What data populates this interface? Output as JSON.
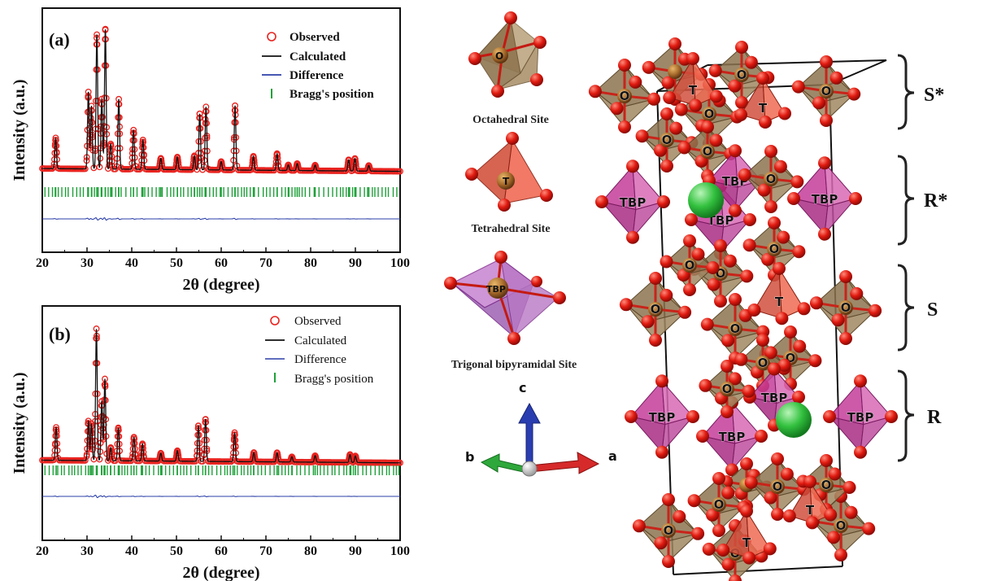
{
  "chart_data": [
    {
      "type": "line",
      "panel": "(a)",
      "xlabel": "2θ (degree)",
      "ylabel": "Intensity (a.u.)",
      "xlim": [
        20,
        100
      ],
      "xticks": [
        "20",
        "30",
        "40",
        "50",
        "60",
        "70",
        "80",
        "90",
        "100"
      ],
      "legend": {
        "position": "top-right",
        "entries": [
          "Observed",
          "Calculated",
          "Difference",
          "Bragg's position"
        ]
      },
      "colors": {
        "observed": "#e8231f",
        "calculated": "#111111",
        "difference": "#2b3fa8",
        "bragg": "#1fa03a"
      },
      "peaks": [
        {
          "x": 23.0,
          "y": 0.22
        },
        {
          "x": 30.3,
          "y": 0.55
        },
        {
          "x": 31.0,
          "y": 0.45
        },
        {
          "x": 32.2,
          "y": 0.96
        },
        {
          "x": 33.3,
          "y": 0.5
        },
        {
          "x": 34.1,
          "y": 1.0
        },
        {
          "x": 35.3,
          "y": 0.18
        },
        {
          "x": 37.1,
          "y": 0.5
        },
        {
          "x": 40.4,
          "y": 0.28
        },
        {
          "x": 42.5,
          "y": 0.21
        },
        {
          "x": 46.5,
          "y": 0.08
        },
        {
          "x": 50.2,
          "y": 0.09
        },
        {
          "x": 54.0,
          "y": 0.1
        },
        {
          "x": 55.2,
          "y": 0.4
        },
        {
          "x": 56.6,
          "y": 0.45
        },
        {
          "x": 60.0,
          "y": 0.06
        },
        {
          "x": 63.1,
          "y": 0.46
        },
        {
          "x": 67.2,
          "y": 0.1
        },
        {
          "x": 72.5,
          "y": 0.12
        },
        {
          "x": 75.0,
          "y": 0.04
        },
        {
          "x": 77.0,
          "y": 0.05
        },
        {
          "x": 81.0,
          "y": 0.04
        },
        {
          "x": 88.5,
          "y": 0.08
        },
        {
          "x": 89.9,
          "y": 0.09
        },
        {
          "x": 93.0,
          "y": 0.04
        }
      ]
    },
    {
      "type": "line",
      "panel": "(b)",
      "xlabel": "2θ (degree)",
      "ylabel": "Intensity (a.u.)",
      "xlim": [
        20,
        100
      ],
      "xticks": [
        "20",
        "30",
        "40",
        "50",
        "60",
        "70",
        "80",
        "90",
        "100"
      ],
      "legend": {
        "position": "top-right",
        "entries": [
          "Observed",
          "Calculated",
          "Difference",
          "Bragg's position"
        ]
      },
      "colors": {
        "observed": "#e8231f",
        "calculated": "#111111",
        "difference": "#2b3fa8",
        "bragg": "#1fa03a"
      },
      "peaks": [
        {
          "x": 23.1,
          "y": 0.25
        },
        {
          "x": 30.3,
          "y": 0.3
        },
        {
          "x": 31.0,
          "y": 0.28
        },
        {
          "x": 32.1,
          "y": 1.0
        },
        {
          "x": 33.3,
          "y": 0.45
        },
        {
          "x": 34.0,
          "y": 0.62
        },
        {
          "x": 35.3,
          "y": 0.1
        },
        {
          "x": 37.0,
          "y": 0.25
        },
        {
          "x": 40.5,
          "y": 0.18
        },
        {
          "x": 42.4,
          "y": 0.13
        },
        {
          "x": 46.5,
          "y": 0.06
        },
        {
          "x": 50.2,
          "y": 0.08
        },
        {
          "x": 54.9,
          "y": 0.27
        },
        {
          "x": 56.5,
          "y": 0.32
        },
        {
          "x": 63.0,
          "y": 0.22
        },
        {
          "x": 67.3,
          "y": 0.07
        },
        {
          "x": 72.5,
          "y": 0.07
        },
        {
          "x": 75.8,
          "y": 0.04
        },
        {
          "x": 81.0,
          "y": 0.05
        },
        {
          "x": 88.8,
          "y": 0.06
        },
        {
          "x": 90.0,
          "y": 0.05
        }
      ]
    }
  ],
  "panel_a": {
    "tag": "(a)",
    "legend": [
      "Observed",
      "Calculated",
      "Difference",
      "Bragg's position"
    ],
    "ylabel": "Intensity (a.u.)",
    "xlabel": "2θ (degree)"
  },
  "panel_b": {
    "tag": "(b)",
    "legend": [
      "Observed",
      "Calculated",
      "Difference",
      "Bragg's position"
    ],
    "ylabel": "Intensity (a.u.)",
    "xlabel": "2θ (degree)"
  },
  "sites": {
    "octa_atom": "O",
    "octa_label": "Octahedral Site",
    "tetra_atom": "T",
    "tetra_label": "Tetrahedral Site",
    "tbp_atom": "TBP",
    "tbp_label": "Trigonal bipyramidal Site"
  },
  "axes": {
    "c": "c",
    "b": "b",
    "a": "a"
  },
  "layers": [
    "S*",
    "R*",
    "S",
    "R"
  ],
  "atoms": {
    "O": "O",
    "T": "T",
    "TBP": "TBP"
  },
  "colors": {
    "oxygen": "#e01a10",
    "octahedron": "#a48a62",
    "tetrahedron": "#e0453a",
    "tbp": "#c23f98",
    "barium": "#33c13f"
  }
}
